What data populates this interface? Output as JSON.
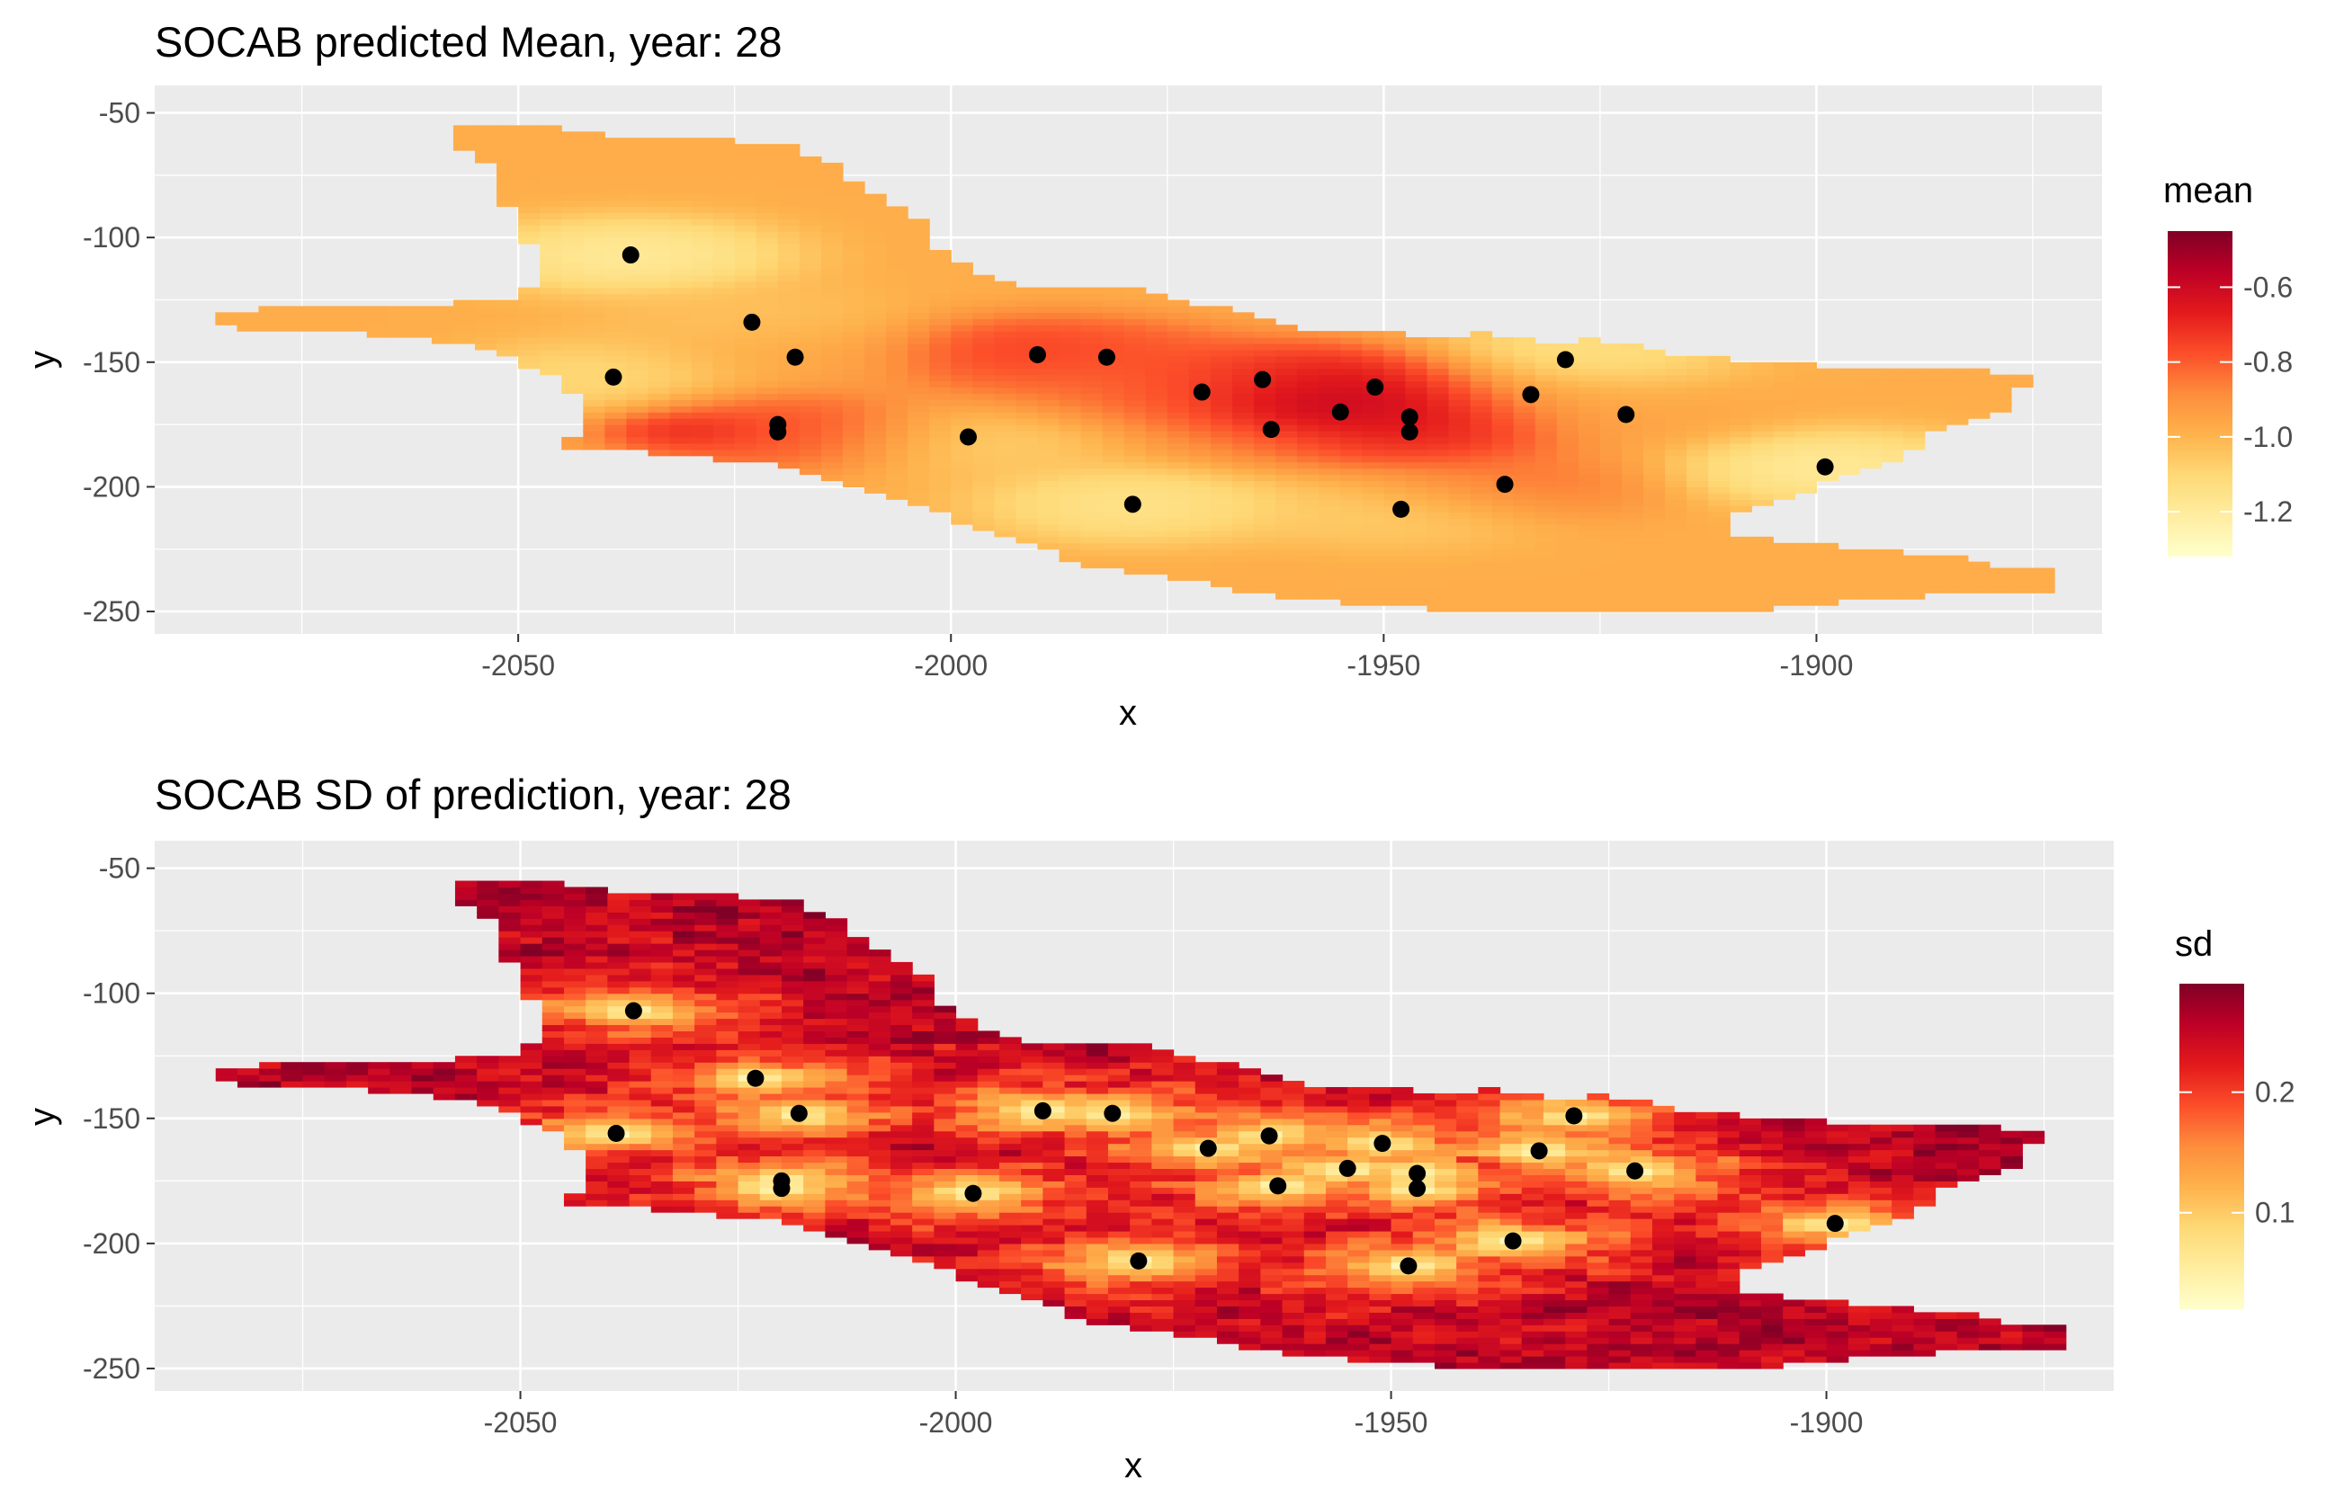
{
  "palette": [
    "#ffffcc",
    "#ffeda0",
    "#fed976",
    "#feb24c",
    "#fd8d3c",
    "#fc4e2a",
    "#e31a1c",
    "#bd0026",
    "#800026"
  ],
  "panel_bg": "#ebebeb",
  "grid_color": "#ffffff",
  "point_color": "#000000",
  "chart_data": [
    {
      "type": "heatmap",
      "title": "SOCAB predicted Mean, year:  28",
      "xlabel": "x",
      "ylabel": "y",
      "xlim": [
        -2092,
        -1867
      ],
      "ylim": [
        -259,
        -39
      ],
      "x_ticks": [
        -2050,
        -2000,
        -1950,
        -1900
      ],
      "x_tick_labels": [
        "-2050",
        "-2000",
        "-1950",
        "-1900"
      ],
      "y_ticks": [
        -50,
        -100,
        -150,
        -200,
        -250
      ],
      "y_tick_labels": [
        "-50",
        "-100",
        "-150",
        "-200",
        "-250"
      ],
      "legend": {
        "title": "mean",
        "position": "right",
        "range": [
          -1.32,
          -0.45
        ],
        "ticks": [
          -0.6,
          -0.8,
          -1.0,
          -1.2
        ],
        "tick_labels": [
          "-0.6",
          "-0.8",
          "-1.0",
          "-1.2"
        ]
      },
      "region_outline": [
        [
          -2057,
          -54
        ],
        [
          -2045,
          -56
        ],
        [
          -2037,
          -60
        ],
        [
          -2028,
          -60
        ],
        [
          -2019,
          -63
        ],
        [
          -2013,
          -72
        ],
        [
          -2010,
          -80
        ],
        [
          -2006,
          -88
        ],
        [
          -2002,
          -95
        ],
        [
          -2003,
          -102
        ],
        [
          -1999,
          -110
        ],
        [
          -1995,
          -116
        ],
        [
          -1991,
          -120
        ],
        [
          -1985,
          -120
        ],
        [
          -1979,
          -120
        ],
        [
          -1972,
          -126
        ],
        [
          -1966,
          -131
        ],
        [
          -1962,
          -135
        ],
        [
          -1957,
          -137
        ],
        [
          -1950,
          -138
        ],
        [
          -1944,
          -140
        ],
        [
          -1938,
          -138
        ],
        [
          -1931,
          -142
        ],
        [
          -1926,
          -141
        ],
        [
          -1917,
          -146
        ],
        [
          -1907,
          -150
        ],
        [
          -1896,
          -152
        ],
        [
          -1884,
          -153
        ],
        [
          -1875,
          -155
        ],
        [
          -1879,
          -172
        ],
        [
          -1886,
          -176
        ],
        [
          -1890,
          -188
        ],
        [
          -1897,
          -195
        ],
        [
          -1902,
          -203
        ],
        [
          -1910,
          -210
        ],
        [
          -1911,
          -219
        ],
        [
          -1902,
          -222
        ],
        [
          -1892,
          -226
        ],
        [
          -1885,
          -228
        ],
        [
          -1878,
          -232
        ],
        [
          -1873,
          -234
        ],
        [
          -1873,
          -242
        ],
        [
          -1889,
          -244
        ],
        [
          -1910,
          -250
        ],
        [
          -1930,
          -251
        ],
        [
          -1950,
          -248
        ],
        [
          -1963,
          -244
        ],
        [
          -1973,
          -237
        ],
        [
          -1983,
          -233
        ],
        [
          -1992,
          -222
        ],
        [
          -2001,
          -211
        ],
        [
          -2012,
          -200
        ],
        [
          -2022,
          -190
        ],
        [
          -2036,
          -186
        ],
        [
          -2046,
          -185
        ],
        [
          -2041,
          -175
        ],
        [
          -2044,
          -160
        ],
        [
          -2052,
          -146
        ],
        [
          -2064,
          -139
        ],
        [
          -2080,
          -138
        ],
        [
          -2087,
          -133
        ],
        [
          -2080,
          -128
        ],
        [
          -2061,
          -127
        ],
        [
          -2050,
          -125
        ],
        [
          -2047,
          -112
        ],
        [
          -2051,
          -91
        ],
        [
          -2052,
          -73
        ],
        [
          -2057,
          -63
        ]
      ],
      "points": [
        {
          "x": -2037,
          "y": -107,
          "mean": -1.25
        },
        {
          "x": -2023,
          "y": -134,
          "mean": -1.05
        },
        {
          "x": -2039,
          "y": -156,
          "mean": -1.15
        },
        {
          "x": -2018,
          "y": -148,
          "mean": -0.95
        },
        {
          "x": -2020,
          "y": -175,
          "mean": -0.75
        },
        {
          "x": -2020,
          "y": -178,
          "mean": -0.75
        },
        {
          "x": -1998,
          "y": -180,
          "mean": -1.1
        },
        {
          "x": -1990,
          "y": -147,
          "mean": -0.65
        },
        {
          "x": -1982,
          "y": -148,
          "mean": -0.8
        },
        {
          "x": -1979,
          "y": -207,
          "mean": -1.2
        },
        {
          "x": -1971,
          "y": -162,
          "mean": -0.75
        },
        {
          "x": -1964,
          "y": -157,
          "mean": -0.65
        },
        {
          "x": -1963,
          "y": -177,
          "mean": -0.9
        },
        {
          "x": -1955,
          "y": -170,
          "mean": -0.5
        },
        {
          "x": -1951,
          "y": -160,
          "mean": -0.55
        },
        {
          "x": -1947,
          "y": -172,
          "mean": -0.55
        },
        {
          "x": -1947,
          "y": -178,
          "mean": -0.7
        },
        {
          "x": -1948,
          "y": -209,
          "mean": -1.1
        },
        {
          "x": -1936,
          "y": -199,
          "mean": -0.8
        },
        {
          "x": -1933,
          "y": -163,
          "mean": -1.0
        },
        {
          "x": -1929,
          "y": -149,
          "mean": -1.2
        },
        {
          "x": -1922,
          "y": -171,
          "mean": -0.95
        },
        {
          "x": -1899,
          "y": -192,
          "mean": -1.25
        }
      ],
      "extra_hotspots": [
        {
          "x": -2030,
          "y": -177,
          "mean": -0.6,
          "radius": 7
        },
        {
          "x": -1958,
          "y": -168,
          "mean": -0.48,
          "radius": 9
        },
        {
          "x": -1985,
          "y": -160,
          "mean": -0.85,
          "radius": 14
        }
      ],
      "background_mean": -0.98
    },
    {
      "type": "heatmap",
      "title": "SOCAB SD of prediction, year:  28",
      "xlabel": "x",
      "ylabel": "y",
      "xlim": [
        -2092,
        -1867
      ],
      "ylim": [
        -259,
        -39
      ],
      "x_ticks": [
        -2050,
        -2000,
        -1950,
        -1900
      ],
      "x_tick_labels": [
        "-2050",
        "-2000",
        "-1950",
        "-1900"
      ],
      "y_ticks": [
        -50,
        -100,
        -150,
        -200,
        -250
      ],
      "y_tick_labels": [
        "-50",
        "-100",
        "-150",
        "-200",
        "-250"
      ],
      "legend": {
        "title": "sd",
        "position": "right",
        "range": [
          0.02,
          0.29
        ],
        "ticks": [
          0.2,
          0.1
        ],
        "tick_labels": [
          "0.2",
          "0.1"
        ]
      },
      "region_outline": "same-as-first",
      "points": "same-as-first",
      "min_sd": 0.02,
      "max_sd": 0.26
    }
  ]
}
